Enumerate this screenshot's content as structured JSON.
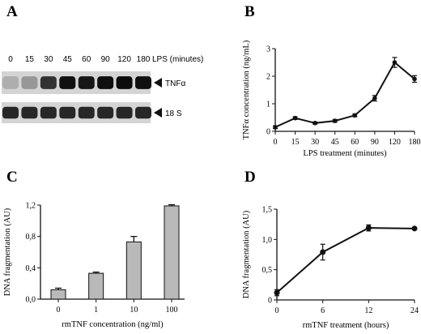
{
  "panels": {
    "A": {
      "label": "A"
    },
    "B": {
      "label": "B"
    },
    "C": {
      "label": "C"
    },
    "D": {
      "label": "D"
    }
  },
  "blot": {
    "lanes": [
      "0",
      "15",
      "30",
      "45",
      "60",
      "90",
      "120",
      "180"
    ],
    "lps_label": "LPS (minutes)",
    "bands": [
      {
        "name": "TNFα",
        "intensity": [
          0.25,
          0.35,
          0.8,
          0.95,
          0.92,
          0.95,
          0.97,
          0.95
        ]
      },
      {
        "name": "18 S",
        "intensity": [
          0.85,
          0.85,
          0.85,
          0.85,
          0.85,
          0.85,
          0.85,
          0.85
        ]
      }
    ]
  },
  "chart_data": [
    {
      "panel": "B",
      "type": "line",
      "x": [
        0,
        15,
        30,
        45,
        60,
        90,
        120,
        180
      ],
      "x_ticks": [
        "0",
        "15",
        "30",
        "45",
        "60",
        "90",
        "120",
        "180"
      ],
      "values": [
        0.15,
        0.48,
        0.3,
        0.38,
        0.58,
        1.2,
        2.5,
        1.9
      ],
      "errors": [
        0.05,
        0.05,
        0.04,
        0.05,
        0.05,
        0.1,
        0.18,
        0.12
      ],
      "xlabel": "LPS treatment (minutes)",
      "ylabel": "TNFα concentration (ng/mL)",
      "ylim": [
        0,
        3
      ],
      "y_ticks": [
        "0",
        "1",
        "2",
        "3"
      ]
    },
    {
      "panel": "C",
      "type": "bar",
      "categories": [
        "0",
        "1",
        "10",
        "100"
      ],
      "values": [
        0.12,
        0.33,
        0.73,
        1.19
      ],
      "errors": [
        0.02,
        0.015,
        0.07,
        0.015
      ],
      "xlabel": "rmTNF concentration (ng/ml)",
      "ylabel": "DNA fragmentation (AU)",
      "ylim": [
        0,
        1.2
      ],
      "y_ticks": [
        "0,0",
        "0,4",
        "0,8",
        "1,2"
      ]
    },
    {
      "panel": "D",
      "type": "line",
      "x": [
        0,
        6,
        12,
        24
      ],
      "x_ticks": [
        "0",
        "6",
        "12",
        "24"
      ],
      "values": [
        0.12,
        0.79,
        1.19,
        1.18
      ],
      "errors": [
        0.05,
        0.13,
        0.05,
        0
      ],
      "xlabel": "rmTNF treatment (hours)",
      "ylabel": "DNA fragmentation (AU)",
      "ylim": [
        0,
        1.5
      ],
      "y_ticks": [
        "0",
        "0,5",
        "1,0",
        "1,5"
      ]
    }
  ]
}
